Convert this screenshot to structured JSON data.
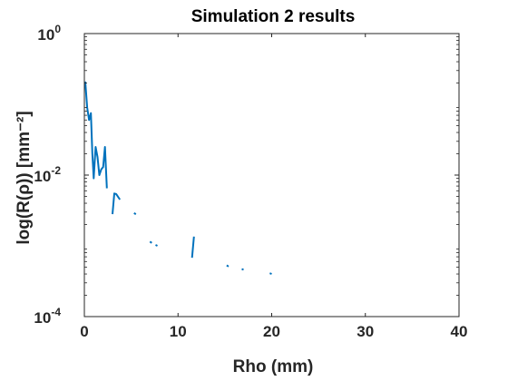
{
  "chart_data": {
    "type": "line",
    "title": "Simulation 2 results",
    "xlabel": "Rho (mm)",
    "ylabel": "log(R(ρ)) [mm⁻²]",
    "xlim": [
      0,
      40
    ],
    "ylim": [
      0.0001,
      1
    ],
    "yscale": "log",
    "grid": false,
    "xticks": [
      {
        "value": 0,
        "label": "0"
      },
      {
        "value": 10,
        "label": "10"
      },
      {
        "value": 20,
        "label": "20"
      },
      {
        "value": 30,
        "label": "30"
      },
      {
        "value": 40,
        "label": "40"
      }
    ],
    "yticks": [
      {
        "value": 1,
        "base": "10",
        "exp": "0"
      },
      {
        "value": 0.01,
        "base": "10",
        "exp": "-2"
      },
      {
        "value": 0.0001,
        "base": "10",
        "exp": "-4"
      }
    ],
    "series": [
      {
        "color": "#0072BD",
        "segments": [
          [
            [
              0.1,
              0.21
            ],
            [
              0.3,
              0.09
            ],
            [
              0.5,
              0.06
            ],
            [
              0.7,
              0.075
            ],
            [
              0.85,
              0.02
            ],
            [
              1.0,
              0.009
            ],
            [
              1.2,
              0.025
            ],
            [
              1.4,
              0.018
            ],
            [
              1.6,
              0.01
            ],
            [
              1.8,
              0.012
            ],
            [
              2.0,
              0.013
            ],
            [
              2.2,
              0.025
            ],
            [
              2.4,
              0.0065
            ]
          ],
          [
            [
              3.0,
              0.0028
            ],
            [
              3.2,
              0.0055
            ],
            [
              3.4,
              0.0054
            ],
            [
              3.8,
              0.0045
            ]
          ],
          [
            [
              5.3,
              0.0029
            ],
            [
              5.5,
              0.0028
            ]
          ],
          [
            [
              7.0,
              0.00115
            ],
            [
              7.2,
              0.0011
            ]
          ],
          [
            [
              7.6,
              0.00103
            ],
            [
              7.8,
              0.001
            ]
          ],
          [
            [
              11.5,
              0.00068
            ],
            [
              11.7,
              0.00135
            ]
          ],
          [
            [
              15.2,
              0.00053
            ],
            [
              15.4,
              0.00051
            ]
          ],
          [
            [
              16.8,
              0.00047
            ],
            [
              17.0,
              0.00046
            ]
          ],
          [
            [
              19.8,
              0.00041
            ],
            [
              20.0,
              0.0004
            ]
          ]
        ]
      }
    ]
  }
}
